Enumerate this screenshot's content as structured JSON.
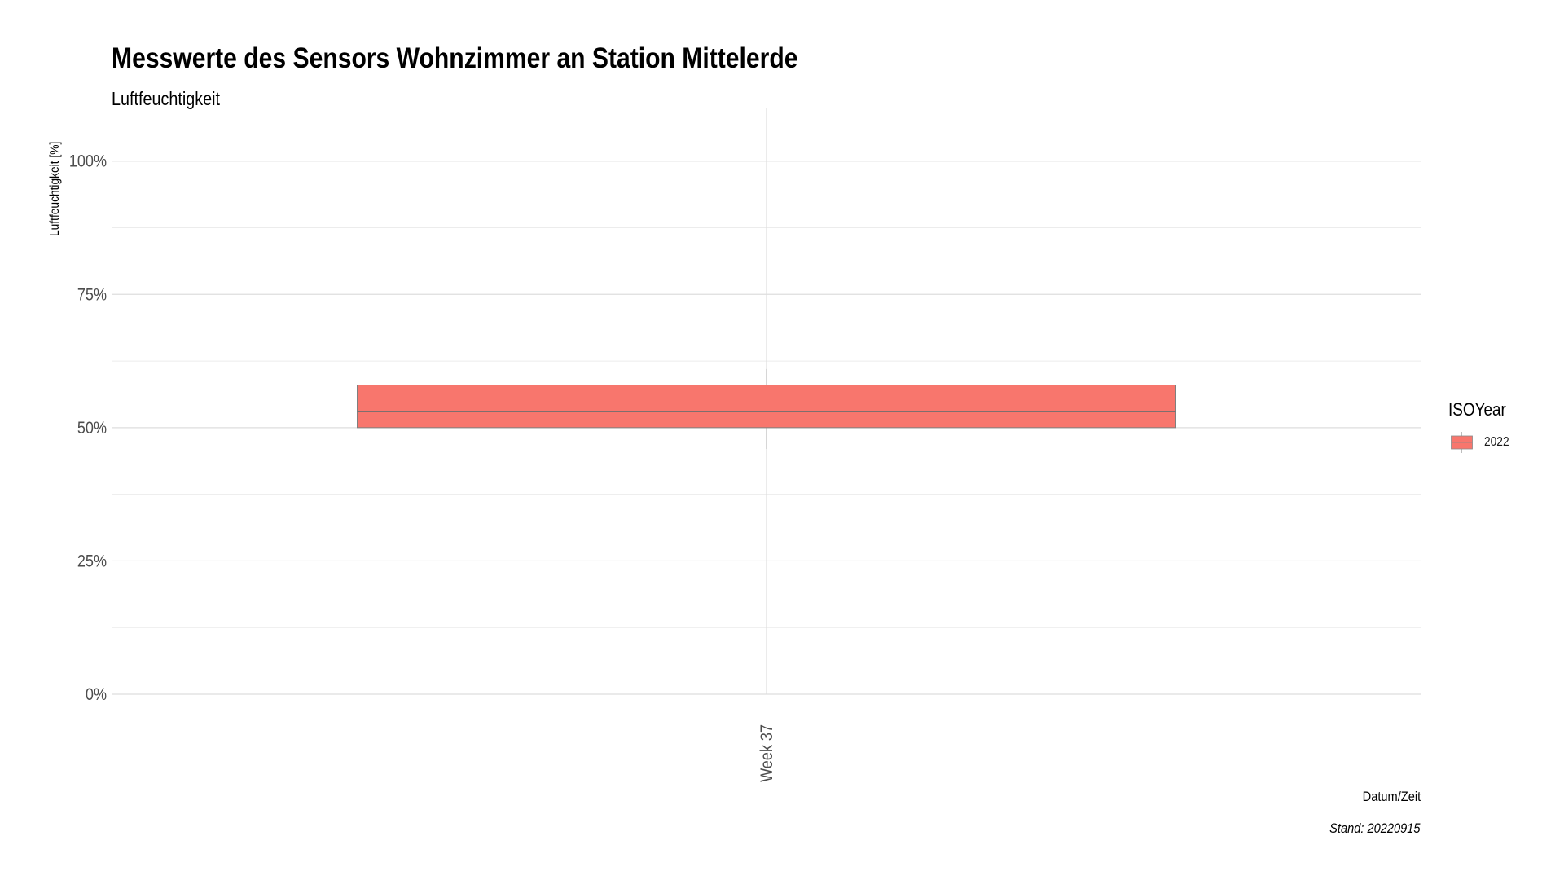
{
  "chart_data": {
    "type": "box",
    "title": "Messwerte des Sensors Wohnzimmer an Station Mittelerde",
    "subtitle": "Luftfeuchtigkeit",
    "xlabel": "Datum/Zeit",
    "ylabel": "Luftfeuchtigkeit [%]",
    "caption": "Stand: 20220915",
    "categories": [
      "Week 37"
    ],
    "ylim": [
      0,
      1.05
    ],
    "y_ticks": [
      0,
      0.25,
      0.5,
      0.75,
      1.0
    ],
    "y_tick_labels": [
      "0%",
      "25%",
      "50%",
      "75%",
      "100%"
    ],
    "grid": true,
    "legend": {
      "title": "ISOYear",
      "position": "right",
      "entries": [
        "2022"
      ]
    },
    "series": [
      {
        "name": "2022",
        "color": "#F8766D",
        "boxes": [
          {
            "category": "Week 37",
            "min": 0.46,
            "q1": 0.5,
            "median": 0.53,
            "q3": 0.58,
            "max": 0.61
          }
        ]
      }
    ]
  }
}
